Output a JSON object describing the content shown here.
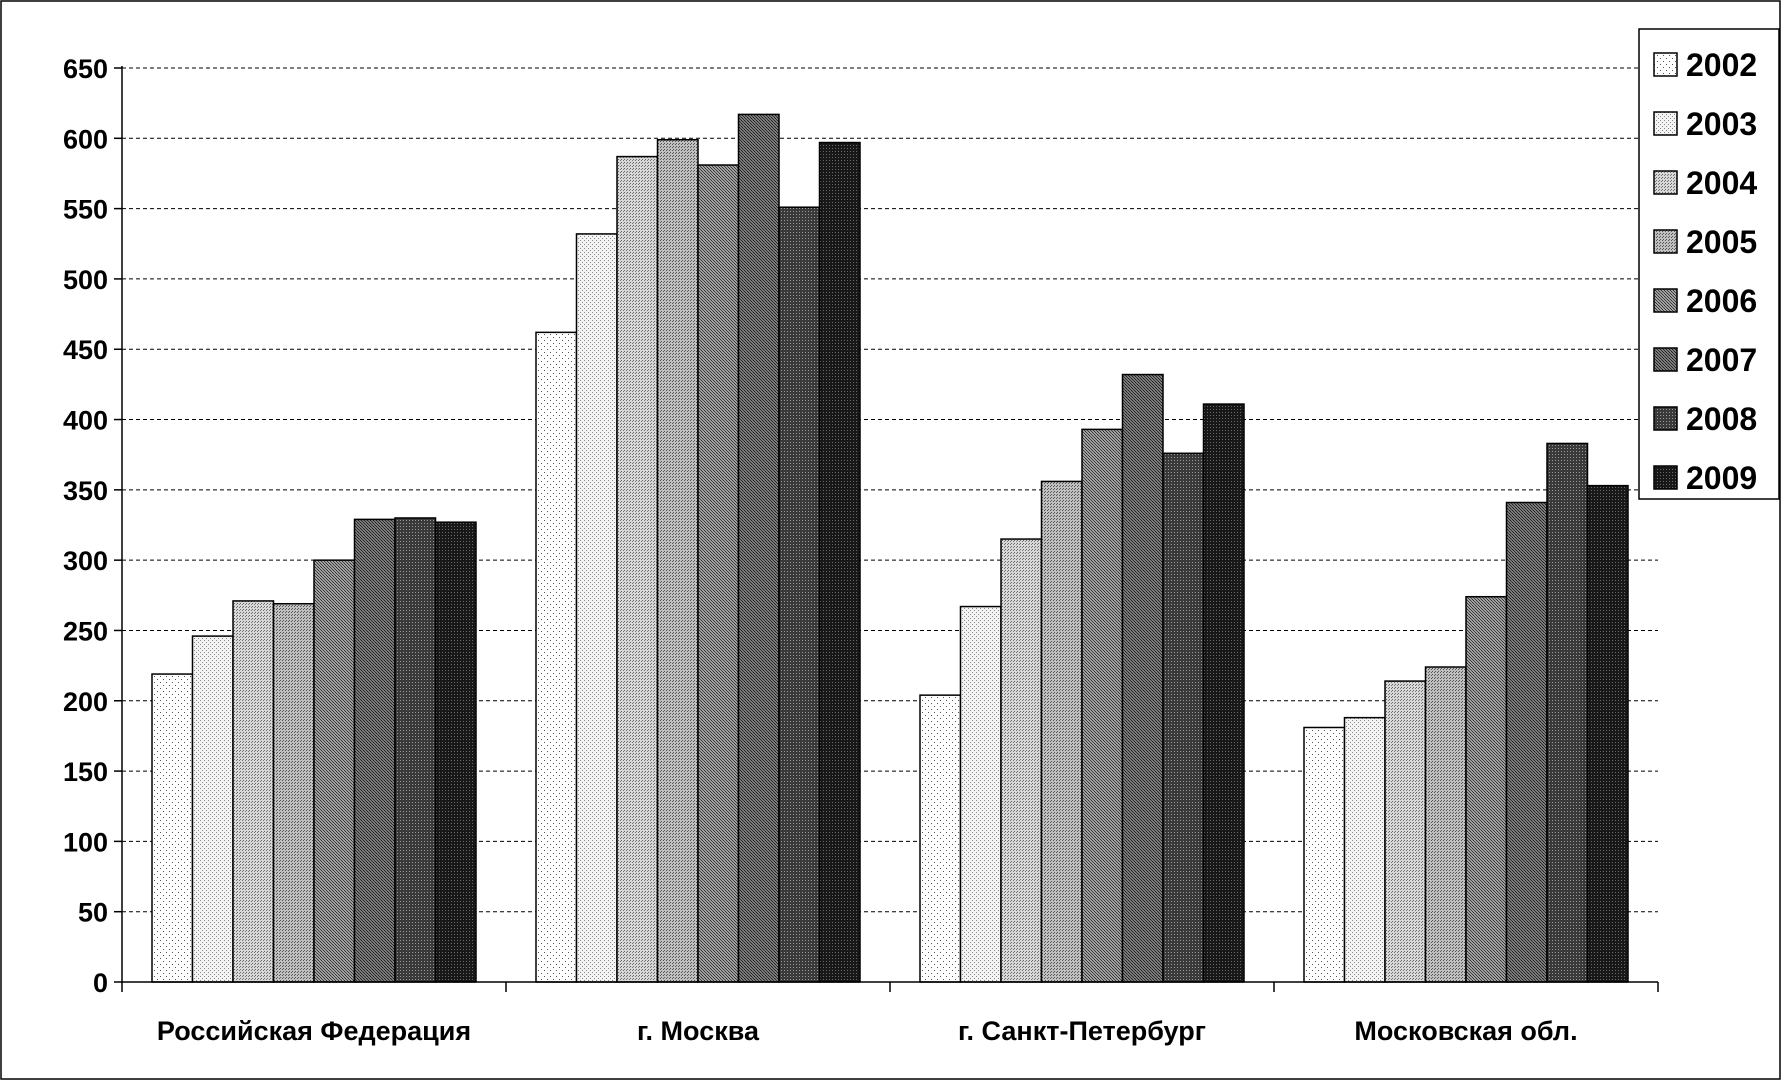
{
  "chart_data": {
    "type": "bar",
    "title": "",
    "xlabel": "",
    "ylabel": "",
    "categories": [
      "Российская Федерация",
      "г. Москва",
      "г. Санкт-Петербург",
      "Московская обл."
    ],
    "ylim": [
      0,
      650
    ],
    "yticks": [
      "0",
      "50",
      "100",
      "150",
      "200",
      "250",
      "300",
      "350",
      "400",
      "450",
      "500",
      "550",
      "600",
      "650"
    ],
    "grid": true,
    "legend_position": "top-right",
    "series": [
      {
        "name": "2002",
        "values": [
          219,
          462,
          204,
          181
        ]
      },
      {
        "name": "2003",
        "values": [
          246,
          532,
          267,
          188
        ]
      },
      {
        "name": "2004",
        "values": [
          271,
          587,
          315,
          214
        ]
      },
      {
        "name": "2005",
        "values": [
          269,
          599,
          356,
          224
        ]
      },
      {
        "name": "2006",
        "values": [
          300,
          581,
          393,
          274
        ]
      },
      {
        "name": "2007",
        "values": [
          329,
          617,
          432,
          341
        ]
      },
      {
        "name": "2008",
        "values": [
          330,
          551,
          376,
          383
        ]
      },
      {
        "name": "2009",
        "values": [
          327,
          597,
          411,
          353
        ]
      }
    ]
  }
}
